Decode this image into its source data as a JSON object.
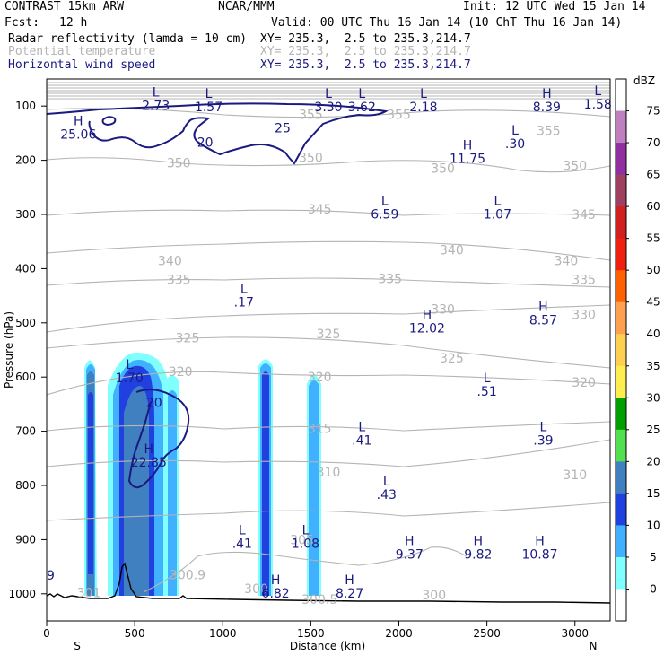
{
  "header": {
    "model": "CONTRAST 15km ARW",
    "org": "NCAR/MMM",
    "init": "Init: 12 UTC Wed 15 Jan 14",
    "fcst_label": "Fcst:",
    "fcst_value": "12 h",
    "valid": "Valid: 00 UTC Thu 16 Jan 14 (10 ChT Thu 16 Jan 14)"
  },
  "fields": [
    {
      "name": "Radar reflectivity (lamda = 10 cm)",
      "xy": "XY= 235.3,  2.5 to 235.3,214.7",
      "color": "#000000"
    },
    {
      "name": "Potential temperature",
      "xy": "XY= 235.3,  2.5 to 235.3,214.7",
      "color": "#b4b4b4"
    },
    {
      "name": "Horizontal wind speed",
      "xy": "XY= 235.3,  2.5 to 235.3,214.7",
      "color": "#1a1a80"
    }
  ],
  "chart_data": {
    "type": "cross-section",
    "xlabel": "Distance (km)",
    "ylabel": "Pressure (hPa)",
    "xlim": [
      0,
      3200
    ],
    "ylim": [
      1050,
      50
    ],
    "x_ticks": [
      0,
      500,
      1000,
      1500,
      2000,
      2500,
      3000
    ],
    "x_tick_labels": [
      "0",
      "500",
      "1000",
      "1500",
      "2000",
      "2500",
      "3000"
    ],
    "y_ticks": [
      100,
      200,
      300,
      400,
      500,
      600,
      700,
      800,
      900,
      1000
    ],
    "y_tick_labels": [
      "100",
      "200",
      "300",
      "400",
      "500",
      "600",
      "700",
      "800",
      "900",
      "1000"
    ],
    "x_endpoint_labels": {
      "left": "S",
      "right": "N"
    },
    "colorbar": {
      "unit": "dBZ",
      "levels": [
        75,
        70,
        65,
        60,
        55,
        50,
        45,
        40,
        35,
        30,
        25,
        20,
        15,
        10,
        5,
        0
      ],
      "level_labels": [
        "75",
        "70",
        "65",
        "60",
        "55",
        "50",
        "45",
        "40",
        "35",
        "30",
        "25",
        "20",
        "15",
        "10",
        "5",
        "0"
      ],
      "colors": [
        "#ffffff",
        "#c080c0",
        "#9030a0",
        "#a04060",
        "#d02020",
        "#f02010",
        "#ff6000",
        "#ffa050",
        "#ffd050",
        "#ffee50",
        "#00a000",
        "#50e050",
        "#4080c0",
        "#2040e0",
        "#40b0ff",
        "#80ffff",
        "#ffffff"
      ]
    },
    "theta_contour_labels": [
      {
        "text": "355",
        "x": 1500,
        "p": 115
      },
      {
        "text": "355",
        "x": 2000,
        "p": 115
      },
      {
        "text": "355",
        "x": 2850,
        "p": 145
      },
      {
        "text": "350",
        "x": 750,
        "p": 205
      },
      {
        "text": "350",
        "x": 1500,
        "p": 195
      },
      {
        "text": "350",
        "x": 2250,
        "p": 215
      },
      {
        "text": "350",
        "x": 3000,
        "p": 210
      },
      {
        "text": "345",
        "x": 1550,
        "p": 290
      },
      {
        "text": "345",
        "x": 3050,
        "p": 300
      },
      {
        "text": "340",
        "x": 700,
        "p": 385
      },
      {
        "text": "340",
        "x": 2300,
        "p": 365
      },
      {
        "text": "340",
        "x": 2950,
        "p": 385
      },
      {
        "text": "335",
        "x": 750,
        "p": 420
      },
      {
        "text": "335",
        "x": 1950,
        "p": 418
      },
      {
        "text": "335",
        "x": 3050,
        "p": 420
      },
      {
        "text": "330",
        "x": 2250,
        "p": 475
      },
      {
        "text": "330",
        "x": 3050,
        "p": 485
      },
      {
        "text": "325",
        "x": 800,
        "p": 528
      },
      {
        "text": "325",
        "x": 1600,
        "p": 520
      },
      {
        "text": "325",
        "x": 2300,
        "p": 565
      },
      {
        "text": "320",
        "x": 760,
        "p": 590
      },
      {
        "text": "320",
        "x": 1550,
        "p": 600
      },
      {
        "text": "320",
        "x": 3050,
        "p": 610
      },
      {
        "text": "315",
        "x": 1550,
        "p": 695
      },
      {
        "text": "310",
        "x": 1600,
        "p": 775
      },
      {
        "text": "310",
        "x": 3000,
        "p": 780
      },
      {
        "text": "305",
        "x": 1450,
        "p": 900
      },
      {
        "text": "300.9",
        "x": 800,
        "p": 965
      },
      {
        "text": "300",
        "x": 2200,
        "p": 1002
      },
      {
        "text": "300.5",
        "x": 1550,
        "p": 1010
      },
      {
        "text": "301",
        "x": 240,
        "p": 998
      },
      {
        "text": "300",
        "x": 1190,
        "p": 990
      }
    ],
    "wind_contour_labels": [
      {
        "text": "25",
        "x": 1340,
        "p": 140
      },
      {
        "text": "20",
        "x": 900,
        "p": 167
      },
      {
        "text": "20",
        "x": 610,
        "p": 647
      }
    ],
    "extrema_labels": [
      {
        "type": "L",
        "value": "2.73",
        "x": 620,
        "p": 82
      },
      {
        "type": "L",
        "value": "1.57",
        "x": 920,
        "p": 85
      },
      {
        "type": "L",
        "value": "3.30",
        "x": 1600,
        "p": 85
      },
      {
        "type": "L",
        "value": "3.62",
        "x": 1790,
        "p": 85
      },
      {
        "type": "L",
        "value": "2.18",
        "x": 2140,
        "p": 85
      },
      {
        "type": "H",
        "value": "8.39",
        "x": 2840,
        "p": 85
      },
      {
        "type": "L",
        "value": "1.58",
        "x": 3130,
        "p": 80
      },
      {
        "type": "H",
        "value": "25.06",
        "x": 180,
        "p": 135
      },
      {
        "type": "L",
        "value": ".30",
        "x": 2660,
        "p": 153
      },
      {
        "type": "H",
        "value": "11.75",
        "x": 2390,
        "p": 180
      },
      {
        "type": "L",
        "value": "6.59",
        "x": 1920,
        "p": 283
      },
      {
        "type": "L",
        "value": "1.07",
        "x": 2560,
        "p": 283
      },
      {
        "type": "L",
        "value": ".17",
        "x": 1120,
        "p": 445
      },
      {
        "type": "H",
        "value": "8.57",
        "x": 2820,
        "p": 478
      },
      {
        "type": "H",
        "value": "12.02",
        "x": 2160,
        "p": 493
      },
      {
        "type": "L",
        "value": "1.70",
        "x": 470,
        "p": 585
      },
      {
        "type": "L",
        "value": ".51",
        "x": 2500,
        "p": 610
      },
      {
        "type": "L",
        "value": ".41",
        "x": 1790,
        "p": 700
      },
      {
        "type": "L",
        "value": ".39",
        "x": 2820,
        "p": 700
      },
      {
        "type": "H",
        "value": "22.85",
        "x": 580,
        "p": 740
      },
      {
        "type": "L",
        "value": ".43",
        "x": 1930,
        "p": 800
      },
      {
        "type": "L",
        "value": ".41",
        "x": 1110,
        "p": 890
      },
      {
        "type": "L",
        "value": "1.08",
        "x": 1470,
        "p": 890
      },
      {
        "type": "H",
        "value": "9.37",
        "x": 2060,
        "p": 910
      },
      {
        "type": "H",
        "value": "9.82",
        "x": 2450,
        "p": 910
      },
      {
        "type": "H",
        "value": "10.87",
        "x": 2800,
        "p": 910
      },
      {
        "type": "H",
        "value": "6.82",
        "x": 1300,
        "p": 982
      },
      {
        "type": "H",
        "value": "8.27",
        "x": 1720,
        "p": 982
      }
    ],
    "left_edge_value": "9"
  }
}
